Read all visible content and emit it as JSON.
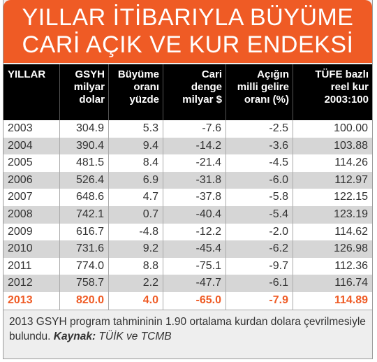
{
  "header": {
    "title": [
      "YILLAR İTİBARIYLA BÜYÜME",
      "CARİ AÇIK VE KUR ENDEKSİ"
    ]
  },
  "table": {
    "columns": [
      [
        "YILLAR"
      ],
      [
        "GSYH",
        "milyar",
        "dolar"
      ],
      [
        "Büyüme",
        "oranı",
        "yüzde"
      ],
      [
        "Cari",
        "denge",
        "milyar $"
      ],
      [
        "Açığın",
        "milli gelire",
        "oranı (%)"
      ],
      [
        "TÜFE bazlı",
        "reel kur",
        "2003:100"
      ]
    ],
    "rows": [
      [
        "2003",
        "304.9",
        "5.3",
        "-7.6",
        "-2.5",
        "100.00"
      ],
      [
        "2004",
        "390.4",
        "9.4",
        "-14.2",
        "-3.6",
        "103.88"
      ],
      [
        "2005",
        "481.5",
        "8.4",
        "-21.4",
        "-4.5",
        "114.26"
      ],
      [
        "2006",
        "526.4",
        "6.9",
        "-31.8",
        "-6.0",
        "112.97"
      ],
      [
        "2007",
        "648.6",
        "4.7",
        "-37.8",
        "-5.8",
        "122.15"
      ],
      [
        "2008",
        "742.1",
        "0.7",
        "-40.4",
        "-5.4",
        "123.19"
      ],
      [
        "2009",
        "616.7",
        "-4.8",
        "-12.2",
        "-2.0",
        "114.62"
      ],
      [
        "2010",
        "731.6",
        "9.2",
        "-45.4",
        "-6.2",
        "126.98"
      ],
      [
        "2011",
        "774.0",
        "8.8",
        "-75.1",
        "-9.7",
        "112.36"
      ],
      [
        "2012",
        "758.7",
        "2.2",
        "-47.7",
        "-6.1",
        "116.74"
      ],
      [
        "2013",
        "820.0",
        "4.0",
        "-65.0",
        "-7.9",
        "114.89"
      ]
    ]
  },
  "footer": {
    "note": "2013 GSYH program tahmininin 1.90 ortalama kurdan dolara çevrilmesiyle bulundu.",
    "source_label": "Kaynak:",
    "source": "TÜİK ve TCMB"
  }
}
